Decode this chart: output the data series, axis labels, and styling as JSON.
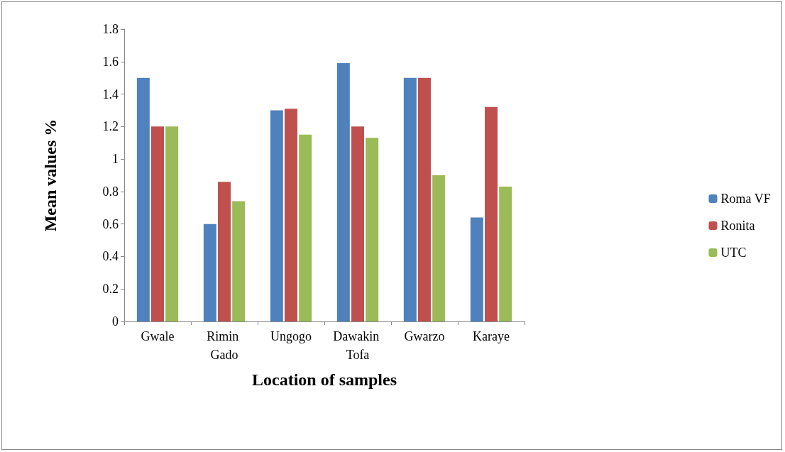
{
  "chart_data": {
    "type": "bar",
    "xlabel": "Location of samples",
    "ylabel": "Mean values %",
    "categories": [
      "Gwale",
      "Rimin Gado",
      "Ungogo",
      "Dawakin Tofa",
      "Gwarzo",
      "Karaye"
    ],
    "series": [
      {
        "name": "Roma VF",
        "color": "#4f81bd",
        "values": [
          1.5,
          0.6,
          1.3,
          1.59,
          1.5,
          0.64
        ]
      },
      {
        "name": "Ronita",
        "color": "#c0504d",
        "values": [
          1.2,
          0.86,
          1.31,
          1.2,
          1.5,
          1.32
        ]
      },
      {
        "name": "UTC",
        "color": "#9bbb59",
        "values": [
          1.2,
          0.74,
          1.15,
          1.13,
          0.9,
          0.83
        ]
      }
    ],
    "ylim": [
      0,
      1.8
    ],
    "yticks": [
      0,
      0.2,
      0.4,
      0.6,
      0.8,
      1,
      1.2,
      1.4,
      1.6,
      1.8
    ],
    "grid": false,
    "legend": "right"
  }
}
